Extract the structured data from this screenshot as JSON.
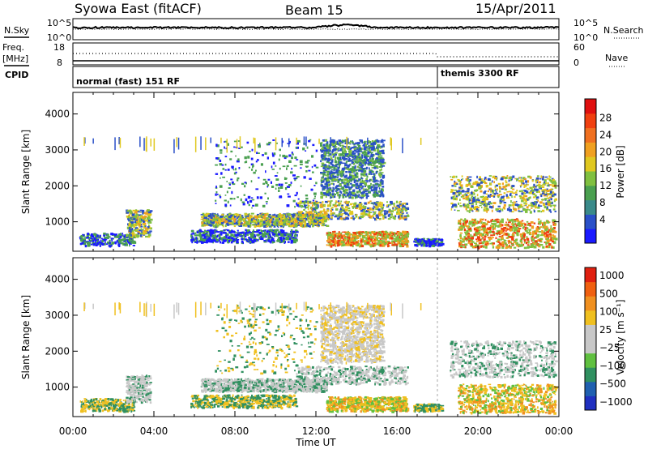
{
  "header": {
    "title": "Syowa East (fitACF)",
    "beam": "Beam 15",
    "date": "15/Apr/2011"
  },
  "top_panels": {
    "nsky_label": "N.Sky",
    "nsky_ticks": [
      "10^5",
      "10^0"
    ],
    "nsearch_label": "N.Search",
    "nsearch_ticks": [
      "10^5",
      "10^0"
    ],
    "freq_label_1": "Freq.",
    "freq_label_2": "[MHz]",
    "freq_ticks": [
      "18",
      "8"
    ],
    "nave_label": "Nave",
    "nave_ticks": [
      "60",
      "0"
    ],
    "cpid_label": "CPID",
    "cpid_segments": [
      {
        "text": "normal (fast) 151 RF",
        "start_hour": 0
      },
      {
        "text": "themis 3300 RF",
        "start_hour": 18
      }
    ]
  },
  "chart_data": [
    {
      "type": "heatmap",
      "quantity": "Power",
      "xlabel": "Time UT",
      "ylabel": "Slant Range [km]",
      "x_ticks": [
        "00:00",
        "04:00",
        "08:00",
        "12:00",
        "16:00",
        "20:00",
        "00:00"
      ],
      "xlim_hours": [
        0,
        24
      ],
      "ylim_km": [
        180,
        4600
      ],
      "y_ticks": [
        "1000",
        "2000",
        "3000",
        "4000"
      ],
      "colorbar_label": "Power [dB]",
      "colorbar_ticks": [
        "4",
        "8",
        "12",
        "16",
        "20",
        "24",
        "28"
      ],
      "colorbar_colors": [
        "#1a1aff",
        "#2a50c8",
        "#3a8a8a",
        "#4aa050",
        "#80c040",
        "#e0c820",
        "#f0a020",
        "#f07020",
        "#f04010",
        "#e01010"
      ]
    },
    {
      "type": "heatmap",
      "quantity": "Velocity",
      "xlabel": "Time UT",
      "ylabel": "Slant Range [km]",
      "x_ticks": [
        "00:00",
        "04:00",
        "08:00",
        "12:00",
        "16:00",
        "20:00",
        "00:00"
      ],
      "xlim_hours": [
        0,
        24
      ],
      "ylim_km": [
        180,
        4600
      ],
      "y_ticks": [
        "1000",
        "2000",
        "3000",
        "4000"
      ],
      "colorbar_label": "Velocity [m s⁻¹]",
      "colorbar_ticks": [
        "1000",
        "500",
        "100",
        "25",
        "−25",
        "−100",
        "−500",
        "−1000"
      ],
      "colorbar_colors": [
        "#2030c0",
        "#2060b0",
        "#309060",
        "#60c040",
        "#c8c8c8",
        "#c8c8c8",
        "#f0c020",
        "#f09020",
        "#f06010",
        "#e02010"
      ]
    }
  ]
}
